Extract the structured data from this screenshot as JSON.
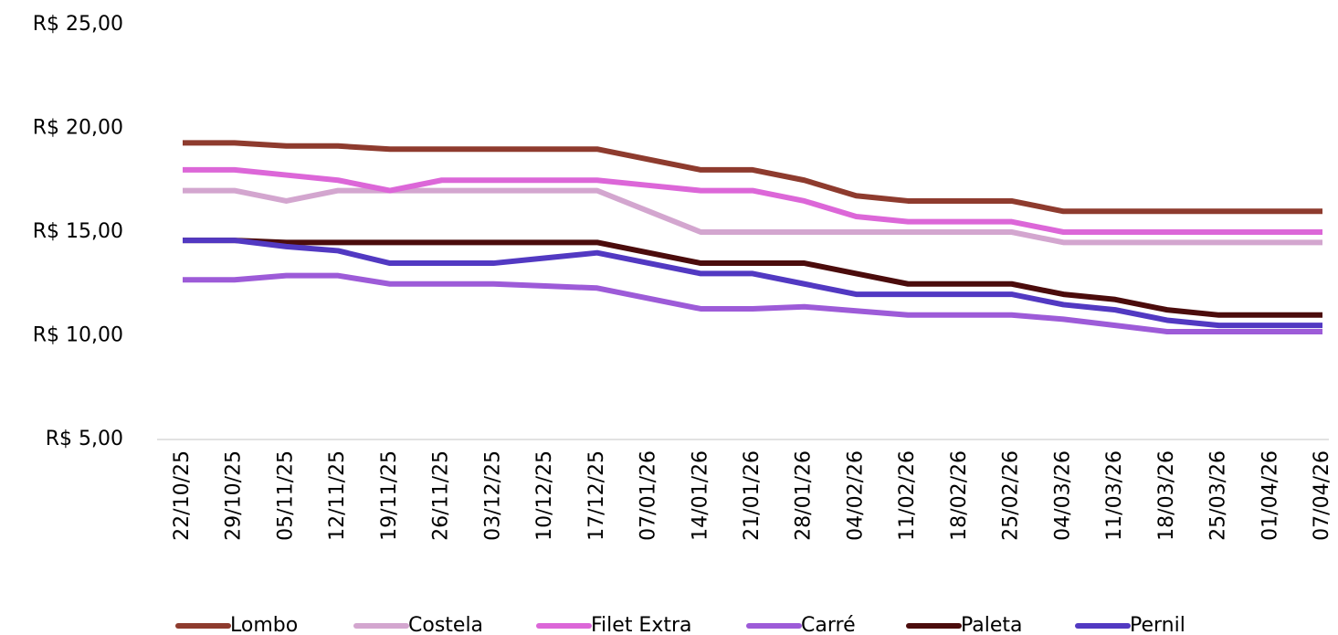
{
  "chart_data": {
    "type": "line",
    "categories": [
      "22/10/25",
      "29/10/25",
      "05/11/25",
      "12/11/25",
      "19/11/25",
      "26/11/25",
      "03/12/25",
      "10/12/25",
      "17/12/25",
      "07/01/26",
      "14/01/26",
      "21/01/26",
      "28/01/26",
      "04/02/26",
      "11/02/26",
      "18/02/26",
      "25/02/26",
      "04/03/26",
      "11/03/26",
      "18/03/26",
      "25/03/26",
      "01/04/26",
      "07/04/26"
    ],
    "series": [
      {
        "name": "Lombo",
        "color": "#8e3b2e",
        "values": [
          19.3,
          19.3,
          19.15,
          19.15,
          19.0,
          19.0,
          19.0,
          19.0,
          19.0,
          18.5,
          18.0,
          18.0,
          17.5,
          16.75,
          16.5,
          16.5,
          16.5,
          16.0,
          16.0,
          16.0,
          16.0,
          16.0,
          16.0
        ]
      },
      {
        "name": "Costela",
        "color": "#d3a6cf",
        "values": [
          17.0,
          17.0,
          16.5,
          17.0,
          17.0,
          17.0,
          17.0,
          17.0,
          17.0,
          16.0,
          15.0,
          15.0,
          15.0,
          15.0,
          15.0,
          15.0,
          15.0,
          14.5,
          14.5,
          14.5,
          14.5,
          14.5,
          14.5
        ]
      },
      {
        "name": "Filet Extra",
        "color": "#dc67d8",
        "values": [
          18.0,
          18.0,
          17.75,
          17.5,
          17.0,
          17.5,
          17.5,
          17.5,
          17.5,
          17.25,
          17.0,
          17.0,
          16.5,
          15.75,
          15.5,
          15.5,
          15.5,
          15.0,
          15.0,
          15.0,
          15.0,
          15.0,
          15.0
        ]
      },
      {
        "name": "Carré",
        "color": "#9d5bd8",
        "values": [
          12.7,
          12.7,
          12.9,
          12.9,
          12.5,
          12.5,
          12.5,
          12.4,
          12.3,
          11.8,
          11.3,
          11.3,
          11.4,
          11.2,
          11.0,
          11.0,
          11.0,
          10.8,
          10.5,
          10.2,
          10.2,
          10.2,
          10.2
        ]
      },
      {
        "name": "Paleta",
        "color": "#4b0c0c",
        "values": [
          14.6,
          14.6,
          14.5,
          14.5,
          14.5,
          14.5,
          14.5,
          14.5,
          14.5,
          14.0,
          13.5,
          13.5,
          13.5,
          13.0,
          12.5,
          12.5,
          12.5,
          12.0,
          11.75,
          11.25,
          11.0,
          11.0,
          11.0
        ]
      },
      {
        "name": "Pernil",
        "color": "#5239c2",
        "values": [
          14.6,
          14.6,
          14.3,
          14.1,
          13.5,
          13.5,
          13.5,
          13.75,
          14.0,
          13.5,
          13.0,
          13.0,
          12.5,
          12.0,
          12.0,
          12.0,
          12.0,
          11.5,
          11.25,
          10.75,
          10.5,
          10.5,
          10.5
        ]
      }
    ],
    "ylim": [
      5,
      25
    ],
    "yticks": [
      {
        "value": 5,
        "label": "R$ 5,00"
      },
      {
        "value": 10,
        "label": "R$ 10,00"
      },
      {
        "value": 15,
        "label": "R$ 15,00"
      },
      {
        "value": 20,
        "label": "R$ 20,00"
      },
      {
        "value": 25,
        "label": "R$ 25,00"
      }
    ],
    "legend": "bottom"
  }
}
